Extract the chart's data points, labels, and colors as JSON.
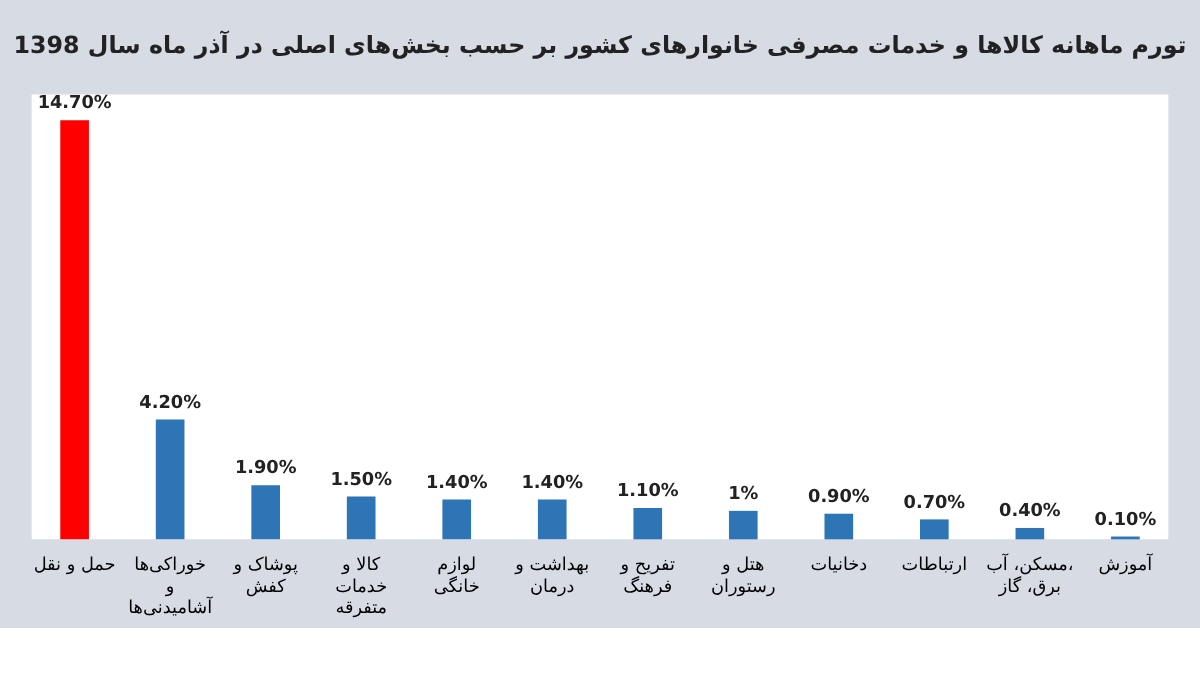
{
  "chart_data": {
    "type": "bar",
    "title": "تورم ماهانه کالاها و خدمات مصرفی خانوارهای کشور بر حسب بخش‌های اصلی در آذر ماه سال 1398",
    "categories": [
      "حمل و نقل",
      "خوراکی‌ها و آشامیدنی‌ها",
      "پوشاک و کفش",
      "کالا و خدمات متفرقه",
      "لوازم خانگی",
      "بهداشت و درمان",
      "تفریح و فرهنگ",
      "هتل و رستوران",
      "دخانیات",
      "ارتباطات",
      "مسکن، آب، برق، گاز",
      "آموزش"
    ],
    "values": [
      14.7,
      4.2,
      1.9,
      1.5,
      1.4,
      1.4,
      1.1,
      1.0,
      0.9,
      0.7,
      0.4,
      0.1
    ],
    "colors": [
      "#ff0000",
      "#2e75b6",
      "#2e75b6",
      "#2e75b6",
      "#2e75b6",
      "#2e75b6",
      "#2e75b6",
      "#2e75b6",
      "#2e75b6",
      "#2e75b6",
      "#2e75b6",
      "#2e75b6"
    ],
    "value_labels": [
      "14.70%",
      "4.20%",
      "1.90%",
      "1.50%",
      "1.40%",
      "1.40%",
      "1.10%",
      "1%",
      "0.90%",
      "0.70%",
      "0.40%",
      "0.10%"
    ],
    "ylim": [
      0,
      15.6
    ],
    "tick_labels": "x"
  }
}
